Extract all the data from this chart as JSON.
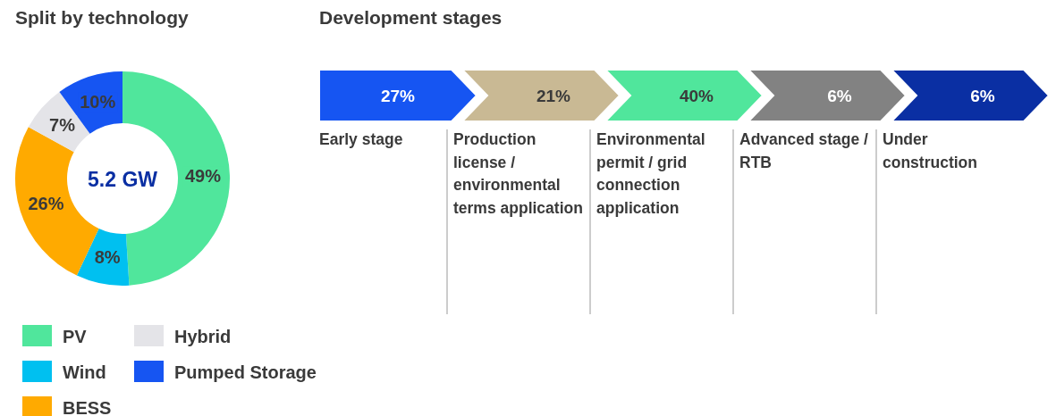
{
  "chart_data": [
    {
      "type": "donut",
      "title": "Split by technology",
      "categories": [
        "PV",
        "Wind",
        "BESS",
        "Hybrid",
        "Pumped Storage"
      ],
      "values": [
        49,
        8,
        26,
        7,
        10
      ],
      "value_labels": [
        "49%",
        "8%",
        "26%",
        "7%",
        "10%"
      ],
      "colors": [
        "#50e69c",
        "#00c0f0",
        "#ffaa00",
        "#e4e4e8",
        "#1655f2"
      ],
      "annotations": [
        "5.2 GW"
      ],
      "legend": "bottom"
    },
    {
      "type": "other",
      "title": "Development stages",
      "categories": [
        "Early stage",
        "Production license / environmental terms application",
        "Environmental permit / grid connection application",
        "Advanced stage / RTB",
        "Under construction"
      ],
      "values": [
        27,
        21,
        40,
        6,
        6
      ],
      "value_labels": [
        "27%",
        "21%",
        "40%",
        "6%",
        "6%"
      ],
      "colors": [
        "#1655f2",
        "#c9b994",
        "#50e69c",
        "#828282",
        "#0a2fa3"
      ]
    }
  ]
}
